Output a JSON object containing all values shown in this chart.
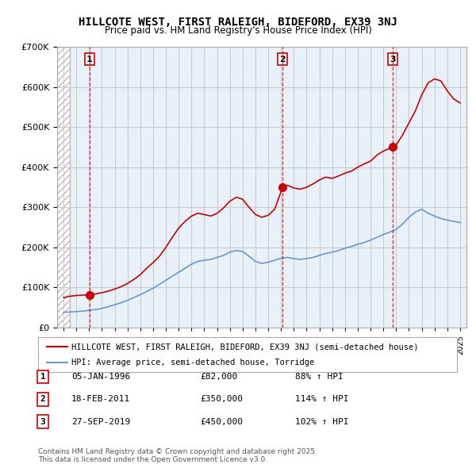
{
  "title": "HILLCOTE WEST, FIRST RALEIGH, BIDEFORD, EX39 3NJ",
  "subtitle": "Price paid vs. HM Land Registry's House Price Index (HPI)",
  "legend_line1": "HILLCOTE WEST, FIRST RALEIGH, BIDEFORD, EX39 3NJ (semi-detached house)",
  "legend_line2": "HPI: Average price, semi-detached house, Torridge",
  "copyright": "Contains HM Land Registry data © Crown copyright and database right 2025.\nThis data is licensed under the Open Government Licence v3.0.",
  "transactions": [
    {
      "num": 1,
      "date": "05-JAN-1996",
      "price": "£82,000",
      "hpi": "88% ↑ HPI",
      "year": 1996.03
    },
    {
      "num": 2,
      "date": "18-FEB-2011",
      "price": "£350,000",
      "hpi": "114% ↑ HPI",
      "year": 2011.13
    },
    {
      "num": 3,
      "date": "27-SEP-2019",
      "price": "£450,000",
      "hpi": "102% ↑ HPI",
      "year": 2019.74
    }
  ],
  "transaction_prices": [
    82000,
    350000,
    450000
  ],
  "ylim": [
    0,
    700000
  ],
  "xlim_start": 1993.5,
  "xlim_end": 2025.5,
  "hatch_end": 1994.5,
  "red_color": "#cc0000",
  "blue_color": "#6699cc",
  "bg_color": "#e8f0f8",
  "hatch_color": "#cccccc",
  "grid_color": "#cccccc",
  "red_line_data_x": [
    1994.0,
    1994.5,
    1995.0,
    1995.5,
    1996.03,
    1996.5,
    1997.0,
    1997.5,
    1998.0,
    1998.5,
    1999.0,
    1999.5,
    2000.0,
    2000.5,
    2001.0,
    2001.5,
    2002.0,
    2002.5,
    2003.0,
    2003.5,
    2004.0,
    2004.5,
    2005.0,
    2005.5,
    2006.0,
    2006.5,
    2007.0,
    2007.5,
    2008.0,
    2008.5,
    2009.0,
    2009.5,
    2010.0,
    2010.5,
    2011.13,
    2011.5,
    2012.0,
    2012.5,
    2013.0,
    2013.5,
    2014.0,
    2014.5,
    2015.0,
    2015.5,
    2016.0,
    2016.5,
    2017.0,
    2017.5,
    2018.0,
    2018.5,
    2019.0,
    2019.74,
    2020.0,
    2020.5,
    2021.0,
    2021.5,
    2022.0,
    2022.5,
    2023.0,
    2023.5,
    2024.0,
    2024.5,
    2025.0
  ],
  "red_line_data_y": [
    75000,
    78000,
    80000,
    81000,
    82000,
    84000,
    87000,
    91000,
    96000,
    102000,
    110000,
    120000,
    132000,
    148000,
    162000,
    178000,
    200000,
    225000,
    248000,
    265000,
    278000,
    285000,
    282000,
    278000,
    285000,
    298000,
    315000,
    325000,
    320000,
    300000,
    282000,
    275000,
    280000,
    295000,
    350000,
    355000,
    348000,
    345000,
    350000,
    358000,
    368000,
    375000,
    372000,
    378000,
    385000,
    390000,
    400000,
    408000,
    415000,
    430000,
    440000,
    450000,
    455000,
    480000,
    510000,
    540000,
    580000,
    610000,
    620000,
    615000,
    590000,
    570000,
    560000
  ],
  "blue_line_data_x": [
    1994.0,
    1994.5,
    1995.0,
    1995.5,
    1996.0,
    1996.5,
    1997.0,
    1997.5,
    1998.0,
    1998.5,
    1999.0,
    1999.5,
    2000.0,
    2000.5,
    2001.0,
    2001.5,
    2002.0,
    2002.5,
    2003.0,
    2003.5,
    2004.0,
    2004.5,
    2005.0,
    2005.5,
    2006.0,
    2006.5,
    2007.0,
    2007.5,
    2008.0,
    2008.5,
    2009.0,
    2009.5,
    2010.0,
    2010.5,
    2011.0,
    2011.5,
    2012.0,
    2012.5,
    2013.0,
    2013.5,
    2014.0,
    2014.5,
    2015.0,
    2015.5,
    2016.0,
    2016.5,
    2017.0,
    2017.5,
    2018.0,
    2018.5,
    2019.0,
    2019.5,
    2020.0,
    2020.5,
    2021.0,
    2021.5,
    2022.0,
    2022.5,
    2023.0,
    2023.5,
    2024.0,
    2024.5,
    2025.0
  ],
  "blue_line_data_y": [
    38000,
    39000,
    40000,
    41000,
    43000,
    45000,
    48000,
    52000,
    57000,
    62000,
    68000,
    75000,
    82000,
    90000,
    98000,
    108000,
    118000,
    128000,
    138000,
    148000,
    158000,
    165000,
    168000,
    170000,
    175000,
    180000,
    188000,
    192000,
    190000,
    178000,
    165000,
    160000,
    163000,
    168000,
    173000,
    175000,
    172000,
    170000,
    172000,
    175000,
    180000,
    185000,
    188000,
    192000,
    198000,
    202000,
    208000,
    212000,
    218000,
    225000,
    232000,
    238000,
    245000,
    258000,
    275000,
    288000,
    295000,
    285000,
    278000,
    272000,
    268000,
    265000,
    262000
  ]
}
